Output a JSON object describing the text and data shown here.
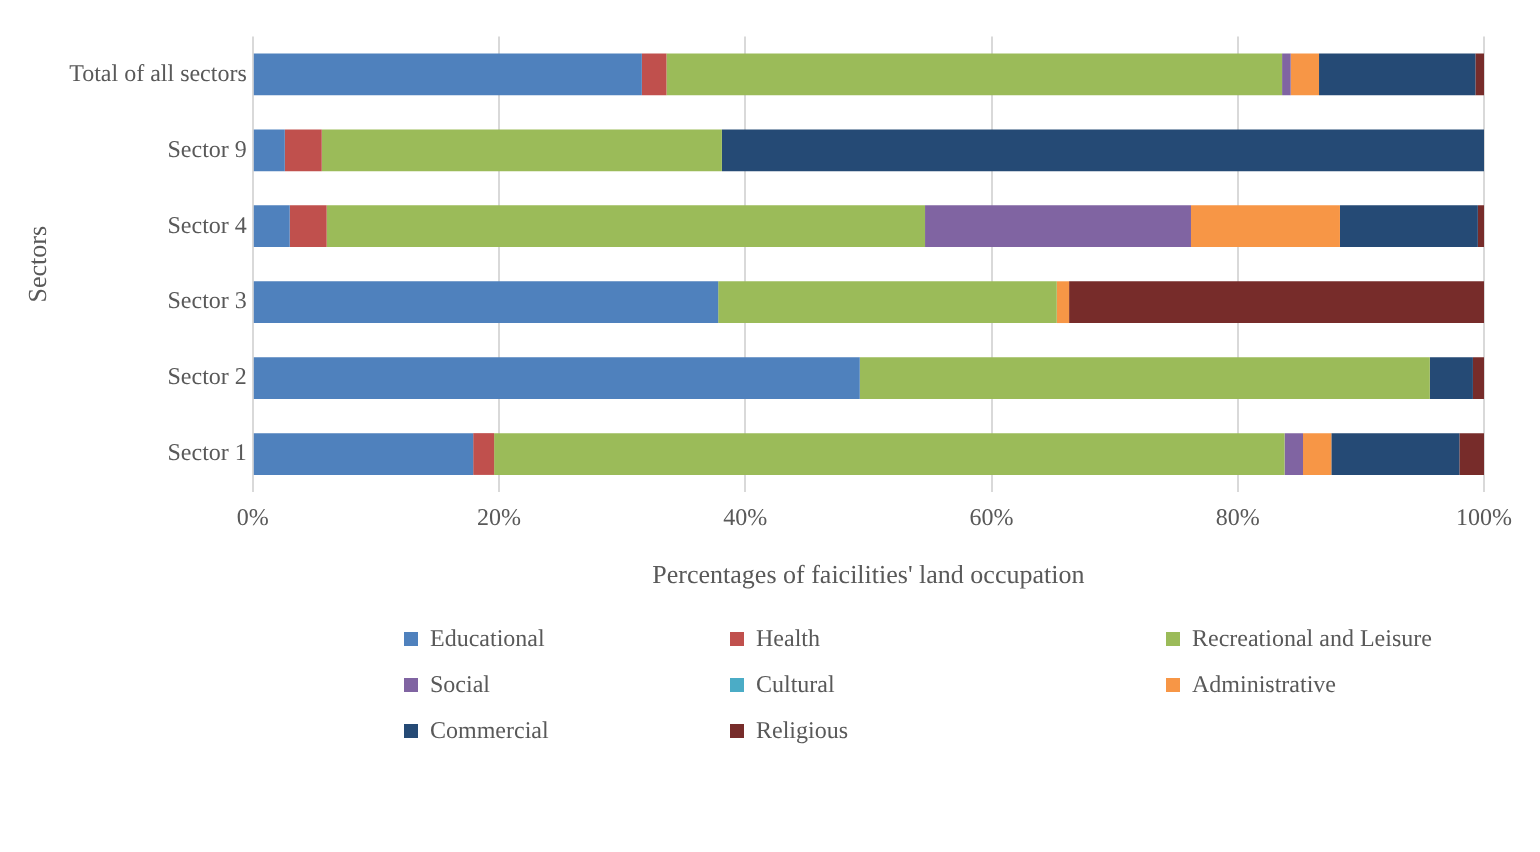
{
  "chart_data": {
    "type": "bar",
    "orientation": "horizontal",
    "stacked": true,
    "xlabel": "Percentages of faicilities' land occupation",
    "ylabel": "Sectors",
    "categories": [
      "Total of all sectors",
      "Sector 9",
      "Sector 4",
      "Sector 3",
      "Sector 2",
      "Sector 1"
    ],
    "series": [
      {
        "name": "Educational",
        "color": "#4f81bd",
        "values": [
          31.6,
          2.6,
          3,
          37.8,
          49.3,
          17.9
        ]
      },
      {
        "name": "Health",
        "color": "#c0504d",
        "values": [
          2,
          3,
          3,
          0,
          0,
          1.7
        ]
      },
      {
        "name": "Recreational and Leisure",
        "color": "#9bbb59",
        "values": [
          50,
          32.5,
          48.6,
          27.5,
          46.3,
          64.2
        ]
      },
      {
        "name": "Social",
        "color": "#8064a2",
        "values": [
          0.7,
          0,
          21.6,
          0,
          0,
          1.5
        ]
      },
      {
        "name": "Cultural",
        "color": "#4bacc6",
        "values": [
          0,
          0,
          0,
          0,
          0,
          0
        ]
      },
      {
        "name": "Administrative",
        "color": "#f79646",
        "values": [
          2.3,
          0,
          12.1,
          1,
          0,
          2.3
        ]
      },
      {
        "name": "Commercial",
        "color": "#254a75",
        "values": [
          12.7,
          61.9,
          11.2,
          0,
          3.5,
          10.4
        ]
      },
      {
        "name": "Religious",
        "color": "#772c2a",
        "values": [
          0.7,
          0,
          0.5,
          33.7,
          0.9,
          2
        ]
      }
    ],
    "xlim": [
      0,
      100
    ],
    "xticks": [
      {
        "value": 0,
        "label": "0%"
      },
      {
        "value": 20,
        "label": "20%"
      },
      {
        "value": 40,
        "label": "40%"
      },
      {
        "value": 60,
        "label": "60%"
      },
      {
        "value": 80,
        "label": "80%"
      },
      {
        "value": 100,
        "label": "100%"
      }
    ],
    "grid": "x",
    "legend": "bottom"
  }
}
